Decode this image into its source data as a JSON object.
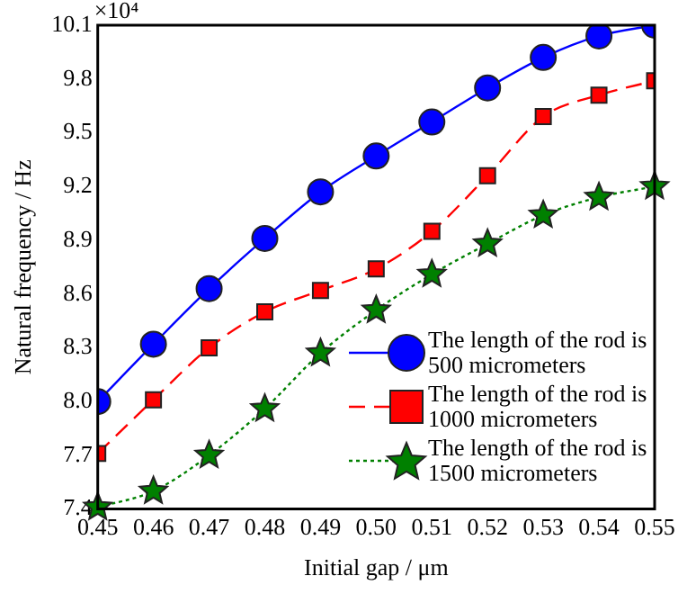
{
  "chart_data": {
    "type": "line",
    "xlabel": "Initial gap / μm",
    "ylabel": "Natural frequency / Hz",
    "annotations": [
      "×10⁴"
    ],
    "x": [
      0.45,
      0.46,
      0.47,
      0.48,
      0.49,
      0.5,
      0.51,
      0.52,
      0.53,
      0.54,
      0.55
    ],
    "xlim": [
      0.45,
      0.55
    ],
    "xticks": [
      0.45,
      0.46,
      0.47,
      0.48,
      0.49,
      {
        "value": 0.5,
        "label": "0.50"
      },
      0.51,
      0.52,
      0.53,
      0.54,
      0.55
    ],
    "ylim": [
      7.4,
      10.1
    ],
    "yticks": [
      7.4,
      7.7,
      {
        "value": 8,
        "label": "8.0"
      },
      8.3,
      8.6,
      8.9,
      9.2,
      9.5,
      9.8,
      10.1
    ],
    "grid": false,
    "legend": "bottom right",
    "series": [
      {
        "name": "The length of the rod is 500 micrometers",
        "color": "#0000ff",
        "marker": "circle",
        "line_style": "solid",
        "values": [
          8.0,
          8.32,
          8.63,
          8.91,
          9.17,
          9.37,
          9.56,
          9.75,
          9.92,
          10.04,
          10.1
        ]
      },
      {
        "name": "The length of the rod is 1000 micrometers",
        "color": "#ff0000",
        "marker": "square",
        "line_style": "dashed",
        "values": [
          7.71,
          8.01,
          8.3,
          8.5,
          8.62,
          8.74,
          8.95,
          9.26,
          9.59,
          9.71,
          9.79
        ]
      },
      {
        "name": "The length of the rod is 1500 micrometers",
        "color": "#008000",
        "marker": "star",
        "line_style": "dotted",
        "values": [
          7.41,
          7.5,
          7.7,
          7.96,
          8.27,
          8.51,
          8.71,
          8.88,
          9.04,
          9.14,
          9.2
        ]
      }
    ]
  }
}
